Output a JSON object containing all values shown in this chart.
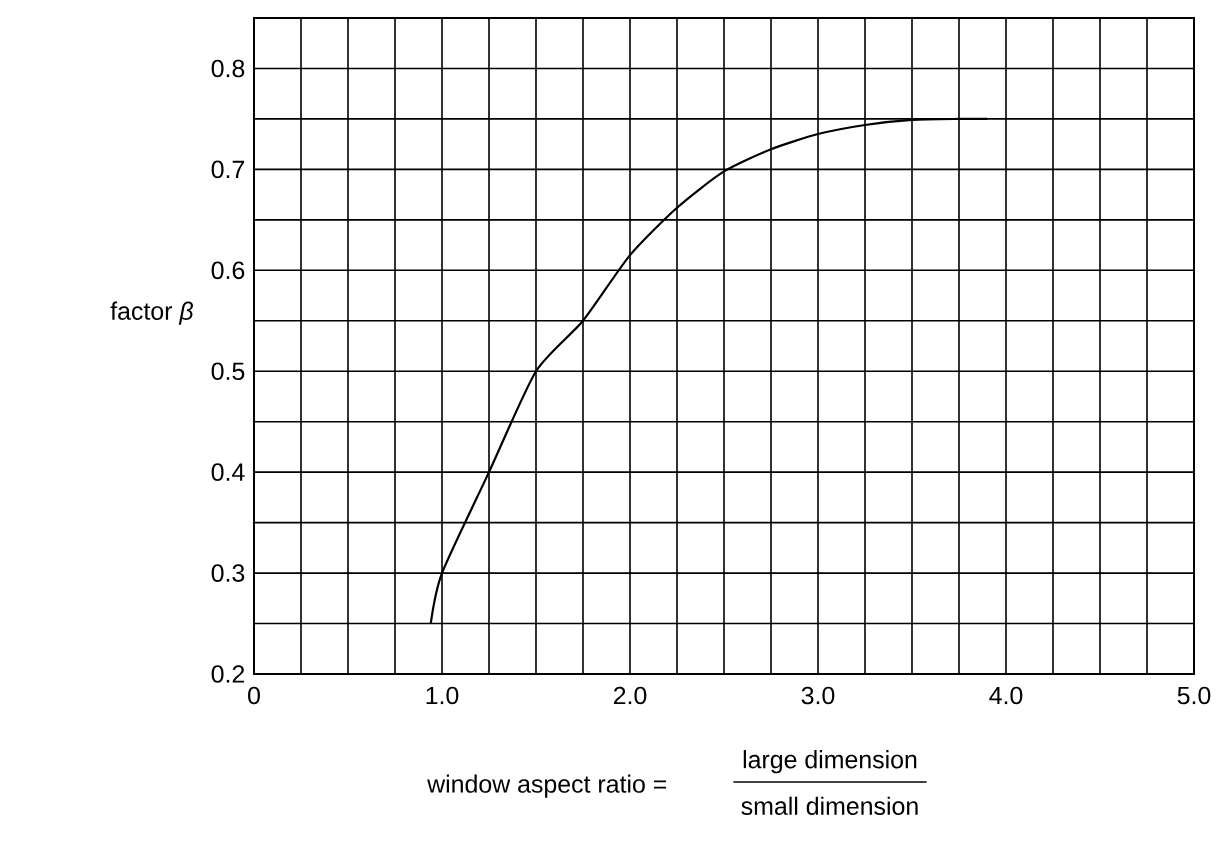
{
  "chart_data": {
    "type": "line",
    "xlabel": "window aspect ratio =",
    "ylabel": "factor *β*",
    "annotations": [
      "large dimension",
      "small dimension"
    ],
    "x": [
      0.94,
      1.0,
      1.25,
      1.5,
      1.75,
      2.0,
      2.25,
      2.5,
      2.75,
      3.0,
      3.25,
      3.5,
      3.75,
      3.9
    ],
    "series": [
      {
        "color": "#000000",
        "values": [
          0.25,
          0.3,
          0.4,
          0.5,
          0.55,
          0.615,
          0.662,
          0.698,
          0.72,
          0.735,
          0.744,
          0.749,
          0.75,
          0.75
        ]
      }
    ],
    "xlim": [
      0,
      5.0
    ],
    "ylim": [
      0.2,
      0.85
    ],
    "xticks": [
      {
        "value": 0,
        "label": "0"
      },
      {
        "value": 1,
        "label": "1.0"
      },
      {
        "value": 2,
        "label": "2.0"
      },
      {
        "value": 3,
        "label": "3.0"
      },
      {
        "value": 4,
        "label": "4.0"
      },
      {
        "value": 5,
        "label": "5.0"
      }
    ],
    "yticks": [
      0.2,
      0.3,
      0.4,
      0.5,
      0.6,
      0.7,
      0.8
    ],
    "grid": true,
    "marker": "none",
    "line_style": "solid"
  }
}
